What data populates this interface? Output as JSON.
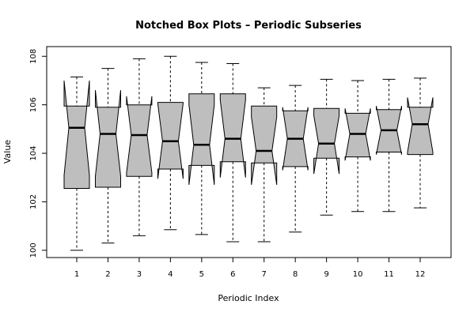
{
  "chart_data": {
    "type": "box",
    "title": "Notched Box Plots – Periodic Subseries",
    "xlabel": "Periodic Index",
    "ylabel": "Value",
    "ylim": [
      99.7,
      108.4
    ],
    "yticks": [
      100,
      102,
      104,
      106,
      108
    ],
    "notched": true,
    "box_fill": "#bebebe",
    "categories": [
      "1",
      "2",
      "3",
      "4",
      "5",
      "6",
      "7",
      "8",
      "9",
      "10",
      "11",
      "12"
    ],
    "boxes": [
      {
        "min": 100.0,
        "q1": 102.55,
        "median": 105.05,
        "q3": 105.95,
        "max": 107.15,
        "notch_low": 103.1,
        "notch_high": 107.0
      },
      {
        "min": 100.3,
        "q1": 102.6,
        "median": 104.8,
        "q3": 105.9,
        "max": 107.5,
        "notch_low": 103.05,
        "notch_high": 106.6
      },
      {
        "min": 100.6,
        "q1": 103.05,
        "median": 104.75,
        "q3": 106.0,
        "max": 107.9,
        "notch_low": 103.2,
        "notch_high": 106.35
      },
      {
        "min": 100.85,
        "q1": 103.35,
        "median": 104.5,
        "q3": 106.1,
        "max": 108.0,
        "notch_low": 102.95,
        "notch_high": 106.05
      },
      {
        "min": 100.65,
        "q1": 103.5,
        "median": 104.35,
        "q3": 106.45,
        "max": 107.75,
        "notch_low": 102.7,
        "notch_high": 106.0
      },
      {
        "min": 100.35,
        "q1": 103.65,
        "median": 104.6,
        "q3": 106.45,
        "max": 107.7,
        "notch_low": 103.0,
        "notch_high": 106.2
      },
      {
        "min": 100.35,
        "q1": 103.6,
        "median": 104.1,
        "q3": 105.95,
        "max": 106.7,
        "notch_low": 102.7,
        "notch_high": 105.5
      },
      {
        "min": 100.75,
        "q1": 103.45,
        "median": 104.6,
        "q3": 105.75,
        "max": 106.8,
        "notch_low": 103.3,
        "notch_high": 105.9
      },
      {
        "min": 101.45,
        "q1": 103.8,
        "median": 104.4,
        "q3": 105.85,
        "max": 107.05,
        "notch_low": 103.15,
        "notch_high": 105.55
      },
      {
        "min": 101.6,
        "q1": 103.85,
        "median": 104.8,
        "q3": 105.65,
        "max": 107.0,
        "notch_low": 103.7,
        "notch_high": 105.85
      },
      {
        "min": 101.6,
        "q1": 104.05,
        "median": 104.95,
        "q3": 105.8,
        "max": 107.05,
        "notch_low": 103.95,
        "notch_high": 105.95
      },
      {
        "min": 101.75,
        "q1": 103.95,
        "median": 105.2,
        "q3": 105.9,
        "max": 107.1,
        "notch_low": 104.05,
        "notch_high": 106.3
      }
    ]
  }
}
